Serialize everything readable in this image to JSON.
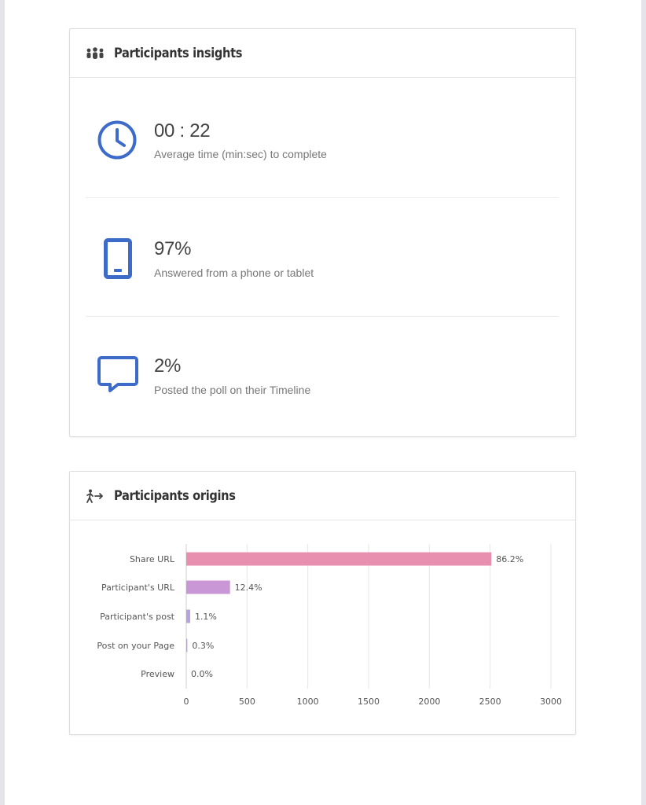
{
  "insights": {
    "title": "Participants insights",
    "items": [
      {
        "value": "00 : 22",
        "description": "Average time (min:sec) to complete",
        "icon": "clock-icon"
      },
      {
        "value": "97%",
        "description": "Answered from a phone or tablet",
        "icon": "phone-icon"
      },
      {
        "value": "2%",
        "description": "Posted the poll on their Timeline",
        "icon": "comment-icon"
      }
    ]
  },
  "origins": {
    "title": "Participants origins"
  },
  "colors": {
    "accent": "#3d6bc9",
    "bar_share": "#e88faf",
    "bar_participant_url": "#c996d6",
    "bar_participant_post": "#b7a1e2"
  },
  "chart_data": {
    "type": "bar",
    "orientation": "horizontal",
    "categories": [
      "Share URL",
      "Participant's URL",
      "Participant's post",
      "Post on your Page",
      "Preview"
    ],
    "values": [
      2510,
      360,
      32,
      9,
      0
    ],
    "labels": [
      "86.2%",
      "12.4%",
      "1.1%",
      "0.3%",
      "0.0%"
    ],
    "xlim": [
      0,
      3000
    ],
    "xticks": [
      "0",
      "500",
      "1000",
      "1500",
      "2000",
      "2500",
      "3000"
    ],
    "grid": true
  }
}
